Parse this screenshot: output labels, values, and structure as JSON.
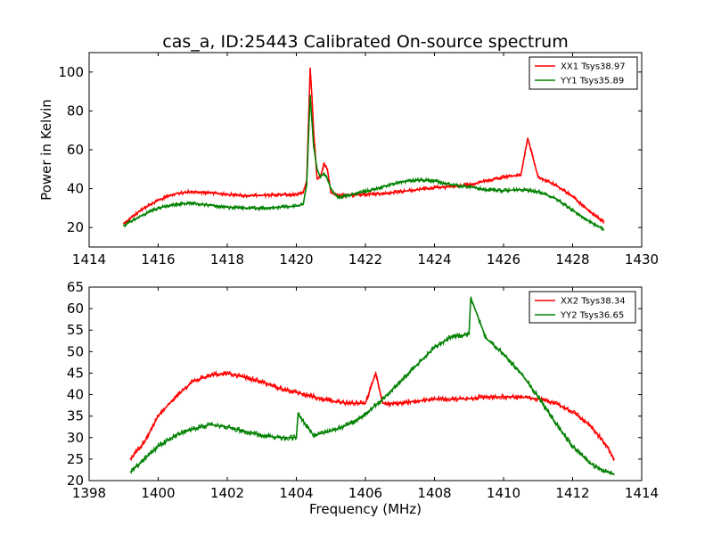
{
  "title": "cas_a, ID:25443 Calibrated On-source spectrum",
  "colors": {
    "xx": "#ff0000",
    "yy": "#008000"
  },
  "chart_data": [
    {
      "type": "line",
      "title": "cas_a, ID:25443 Calibrated On-source spectrum",
      "xlabel": "",
      "ylabel": "Power in Kelvin",
      "xlim": [
        1414,
        1430
      ],
      "ylim": [
        10,
        110
      ],
      "xticks": [
        1414,
        1416,
        1418,
        1420,
        1422,
        1424,
        1426,
        1428,
        1430
      ],
      "yticks": [
        20,
        40,
        60,
        80,
        100
      ],
      "legend_position": "top-right",
      "grid": false,
      "series": [
        {
          "name": "XX1 Tsys38.97",
          "color": "#ff0000",
          "x": [
            1415.0,
            1415.5,
            1416.0,
            1416.5,
            1417.0,
            1417.5,
            1418.0,
            1418.5,
            1419.0,
            1419.5,
            1420.0,
            1420.2,
            1420.3,
            1420.4,
            1420.45,
            1420.5,
            1420.6,
            1420.7,
            1420.8,
            1420.9,
            1421.0,
            1421.2,
            1421.5,
            1422.0,
            1422.5,
            1423.0,
            1423.5,
            1424.0,
            1424.5,
            1425.0,
            1425.5,
            1426.0,
            1426.5,
            1426.7,
            1427.0,
            1427.5,
            1428.0,
            1428.5,
            1428.9
          ],
          "values": [
            22,
            29,
            34,
            37.5,
            38.5,
            38,
            37,
            36.5,
            36.5,
            37,
            37,
            38,
            44,
            102,
            88,
            70,
            45,
            46,
            53,
            50,
            38,
            36.5,
            36.5,
            37,
            37.5,
            38.5,
            39.5,
            40.5,
            41,
            42,
            44,
            46,
            47,
            66,
            46,
            42,
            36,
            28,
            23
          ]
        },
        {
          "name": "YY1 Tsys35.89",
          "color": "#008000",
          "x": [
            1415.0,
            1415.5,
            1416.0,
            1416.5,
            1417.0,
            1417.5,
            1418.0,
            1418.5,
            1419.0,
            1419.5,
            1420.0,
            1420.2,
            1420.3,
            1420.4,
            1420.45,
            1420.5,
            1420.6,
            1420.7,
            1420.8,
            1420.9,
            1421.0,
            1421.2,
            1421.5,
            1422.0,
            1422.5,
            1423.0,
            1423.5,
            1424.0,
            1424.5,
            1425.0,
            1425.5,
            1426.0,
            1426.5,
            1427.0,
            1427.5,
            1428.0,
            1428.5,
            1428.9
          ],
          "values": [
            21,
            26,
            30,
            32,
            32.5,
            31.5,
            30.5,
            30,
            30,
            30.5,
            31,
            32,
            42,
            88,
            75,
            62,
            50,
            46,
            48,
            45,
            40,
            35.5,
            36.5,
            38.5,
            41,
            43.5,
            44.5,
            44,
            42,
            41,
            39.5,
            39,
            39.5,
            38.5,
            35,
            29,
            23,
            19
          ]
        }
      ]
    },
    {
      "type": "line",
      "title": "",
      "xlabel": "Frequency (MHz)",
      "ylabel": "",
      "xlim": [
        1398,
        1414
      ],
      "ylim": [
        20,
        65
      ],
      "xticks": [
        1398,
        1400,
        1402,
        1404,
        1406,
        1408,
        1410,
        1412,
        1414
      ],
      "yticks": [
        20,
        25,
        30,
        35,
        40,
        45,
        50,
        55,
        60,
        65
      ],
      "legend_position": "top-right",
      "grid": false,
      "series": [
        {
          "name": "XX2 Tsys38.34",
          "color": "#ff0000",
          "x": [
            1399.2,
            1399.6,
            1400.0,
            1400.5,
            1401.0,
            1401.5,
            1402.0,
            1402.5,
            1403.0,
            1403.5,
            1404.0,
            1404.5,
            1405.0,
            1405.5,
            1406.0,
            1406.3,
            1406.5,
            1407.0,
            1407.5,
            1408.0,
            1408.5,
            1409.0,
            1409.5,
            1410.0,
            1410.5,
            1411.0,
            1411.5,
            1412.0,
            1412.5,
            1413.0,
            1413.2
          ],
          "values": [
            25,
            29,
            35,
            39.5,
            43,
            44.5,
            45,
            44,
            43,
            41.5,
            40.5,
            39.5,
            38.5,
            38,
            38,
            45,
            38,
            38,
            38.5,
            39,
            39,
            39,
            39.5,
            39.5,
            39.5,
            39,
            38,
            36,
            33,
            28,
            25
          ]
        },
        {
          "name": "YY2 Tsys36.65",
          "color": "#008000",
          "x": [
            1399.2,
            1399.6,
            1400.0,
            1400.5,
            1401.0,
            1401.5,
            1402.0,
            1402.5,
            1403.0,
            1403.5,
            1404.0,
            1404.05,
            1404.5,
            1405.0,
            1405.5,
            1406.0,
            1406.5,
            1407.0,
            1407.5,
            1408.0,
            1408.5,
            1409.0,
            1409.05,
            1409.5,
            1410.0,
            1410.5,
            1411.0,
            1411.5,
            1412.0,
            1412.5,
            1413.0,
            1413.2
          ],
          "values": [
            22,
            25,
            28,
            30.5,
            32,
            33,
            32.5,
            31.5,
            30.5,
            30,
            30,
            35.5,
            30.5,
            31.5,
            33,
            35.5,
            39,
            43,
            47,
            51,
            53.5,
            54,
            62.5,
            53,
            49.5,
            45,
            39.5,
            33.5,
            28,
            24,
            22,
            21.5
          ]
        }
      ]
    }
  ]
}
